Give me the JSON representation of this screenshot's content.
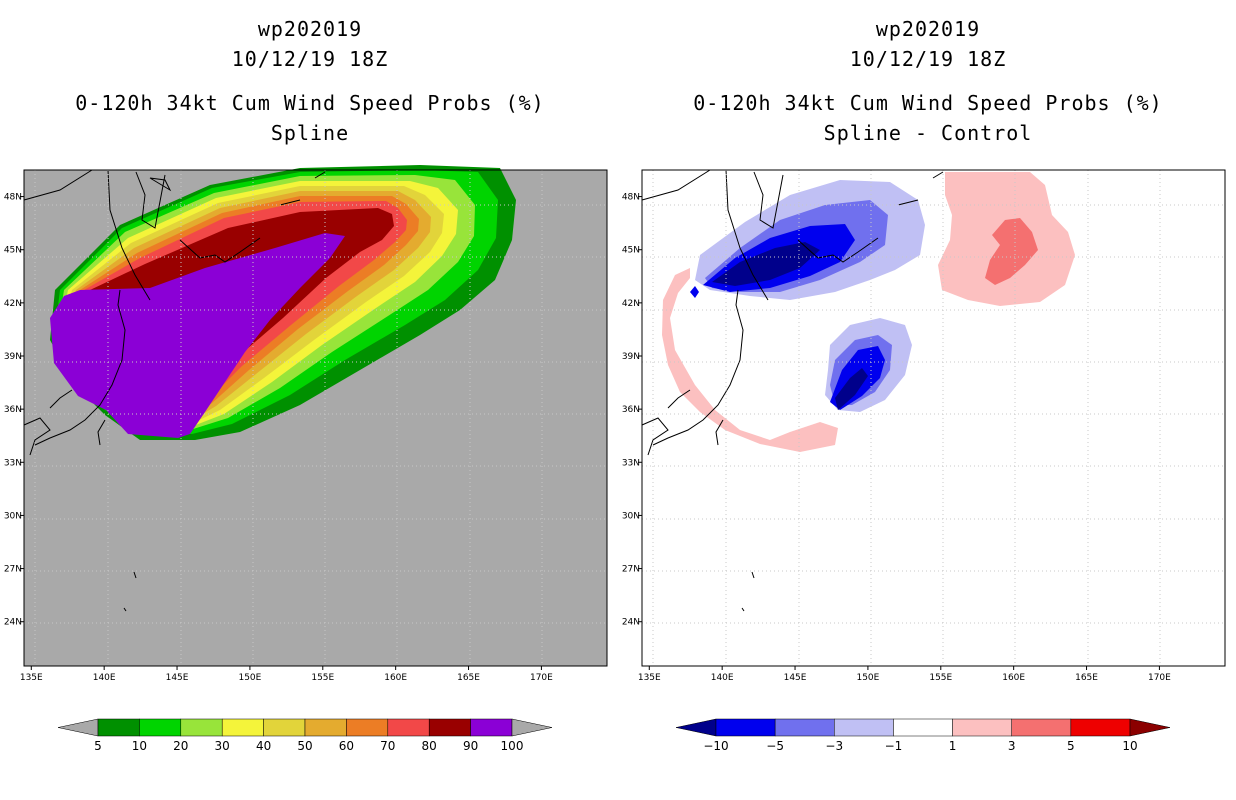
{
  "chart_data": [
    {
      "type": "heatmap",
      "storm": "wp202019",
      "datetime": "10/12/19 18Z",
      "title": "0-120h 34kt Cum Wind Speed Probs (%)",
      "subtitle": "Spline",
      "x_ticks": [
        "135E",
        "140E",
        "145E",
        "150E",
        "155E",
        "160E",
        "165E",
        "170E"
      ],
      "y_ticks": [
        "24N",
        "27N",
        "30N",
        "33N",
        "36N",
        "39N",
        "42N",
        "45N",
        "48N"
      ],
      "xlim": [
        134.5,
        174.5
      ],
      "ylim": [
        21.5,
        49.5
      ],
      "colorbar": {
        "labels": [
          "5",
          "10",
          "20",
          "30",
          "40",
          "50",
          "60",
          "70",
          "80",
          "90",
          "100"
        ],
        "colors": [
          "#a9a9a9",
          "#009000",
          "#00d400",
          "#98e43a",
          "#f4f43a",
          "#e2d43a",
          "#e4ab2f",
          "#ec7d25",
          "#f24848",
          "#990000",
          "#8b00d6",
          "#a9a9a9"
        ]
      }
    },
    {
      "type": "heatmap",
      "storm": "wp202019",
      "datetime": "10/12/19 18Z",
      "title": "0-120h 34kt Cum Wind Speed Probs (%)",
      "subtitle": "Spline - Control",
      "x_ticks": [
        "135E",
        "140E",
        "145E",
        "150E",
        "155E",
        "160E",
        "165E",
        "170E"
      ],
      "y_ticks": [
        "24N",
        "27N",
        "30N",
        "33N",
        "36N",
        "39N",
        "42N",
        "45N",
        "48N"
      ],
      "xlim": [
        134.5,
        174.5
      ],
      "ylim": [
        21.5,
        49.5
      ],
      "colorbar": {
        "labels": [
          "−10",
          "−5",
          "−3",
          "−1",
          "1",
          "3",
          "5",
          "10"
        ],
        "colors": [
          "#00008b",
          "#0000ee",
          "#7070ee",
          "#c0c0f4",
          "#ffffff",
          "#fcc0c0",
          "#f47070",
          "#ee0000",
          "#8b0000"
        ]
      }
    }
  ]
}
